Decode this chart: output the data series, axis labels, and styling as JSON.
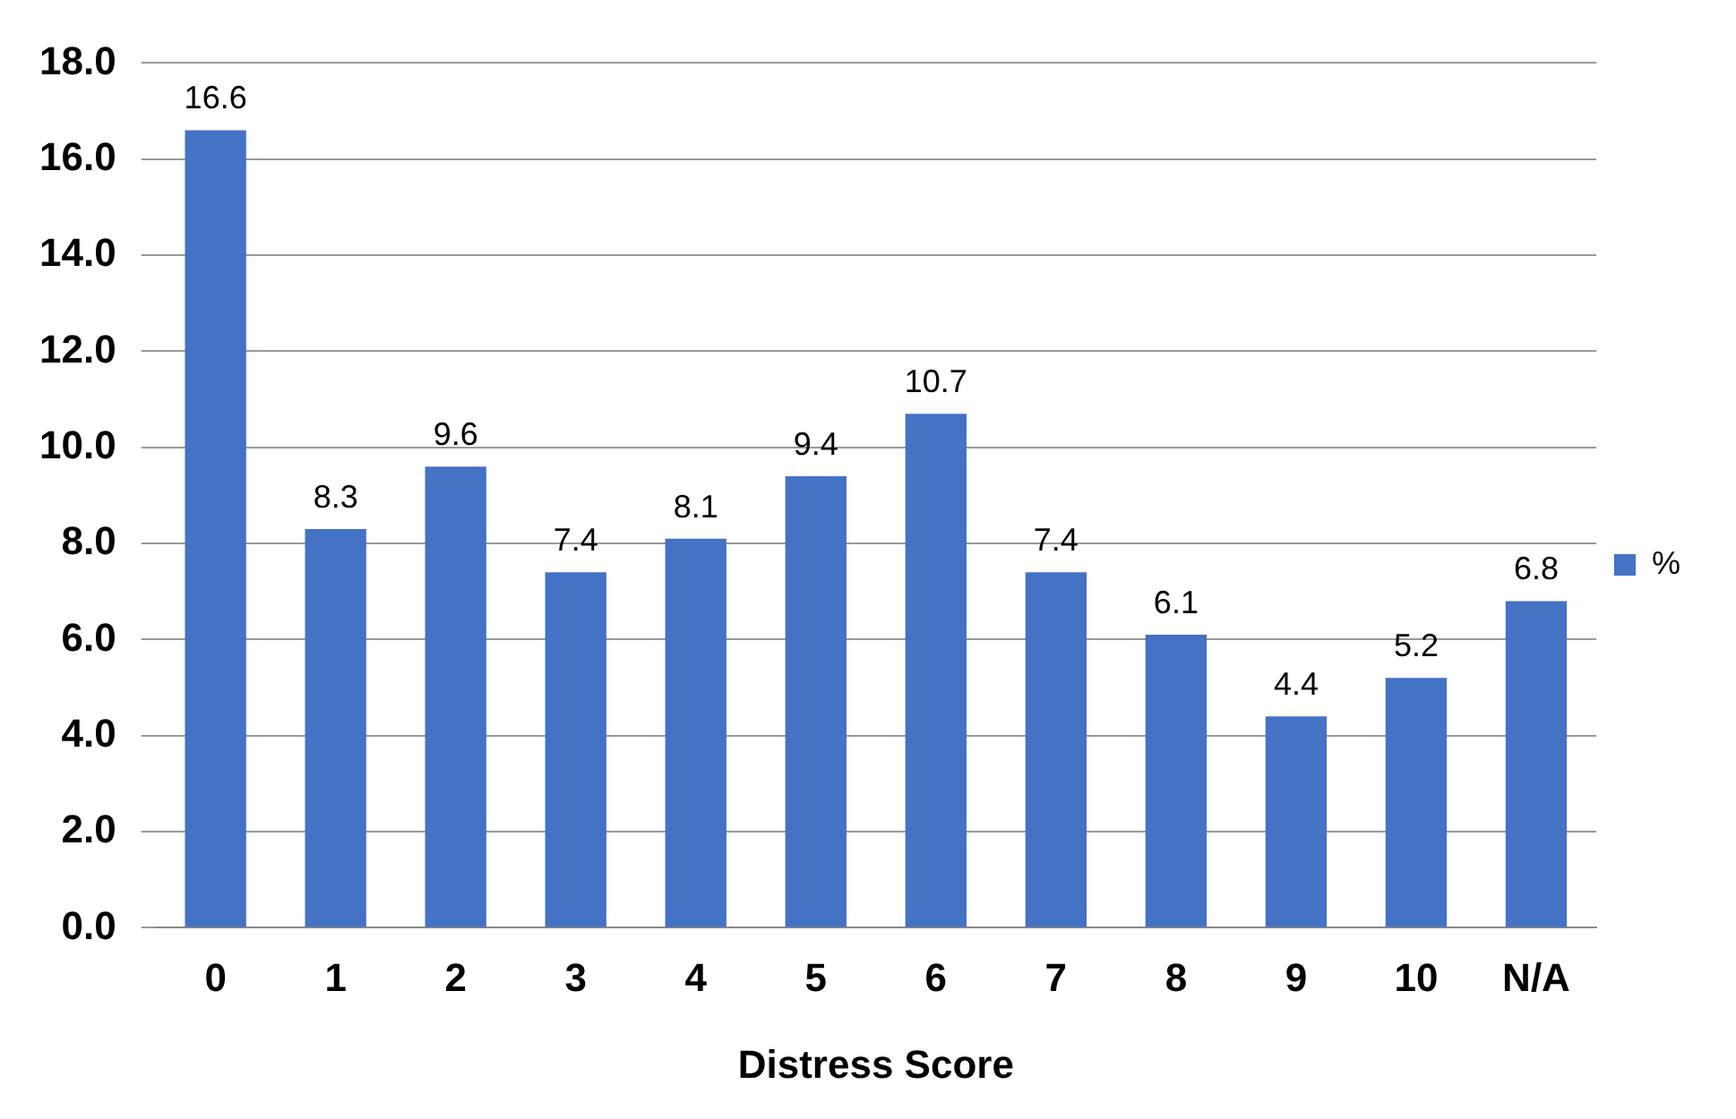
{
  "chart_data": {
    "type": "bar",
    "xlabel": "Distress Score",
    "categories": [
      "0",
      "1",
      "2",
      "3",
      "4",
      "5",
      "6",
      "7",
      "8",
      "9",
      "10",
      "N/A"
    ],
    "series": [
      {
        "name": "%",
        "color": "#4472c4",
        "values": [
          16.6,
          8.3,
          9.6,
          7.4,
          8.1,
          9.4,
          10.7,
          7.4,
          6.1,
          4.4,
          5.2,
          6.8
        ]
      }
    ],
    "ylim": [
      0,
      18
    ],
    "yticks": [
      {
        "value": 0,
        "label": "0.0"
      },
      {
        "value": 2,
        "label": "2.0"
      },
      {
        "value": 4,
        "label": "4.0"
      },
      {
        "value": 6,
        "label": "6.0"
      },
      {
        "value": 8,
        "label": "8.0"
      },
      {
        "value": 10,
        "label": "10.0"
      },
      {
        "value": 12,
        "label": "12.0"
      },
      {
        "value": 14,
        "label": "14.0"
      },
      {
        "value": 16,
        "label": "16.0"
      },
      {
        "value": 18,
        "label": "18.0"
      }
    ],
    "grid": "y",
    "legend": "right",
    "data_labels": true
  }
}
